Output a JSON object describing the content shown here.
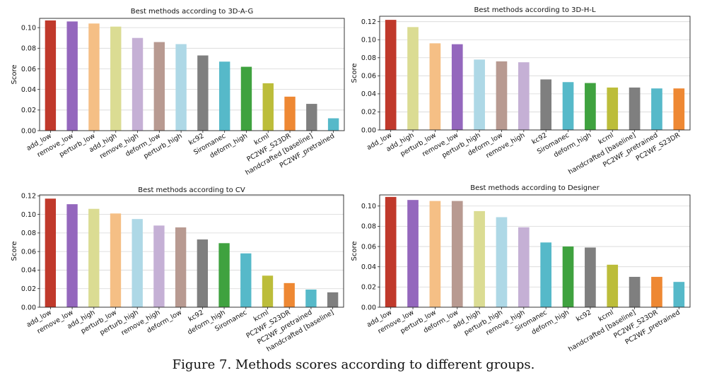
{
  "figure": {
    "caption": "Figure 7. Methods scores according to different groups."
  },
  "colors": {
    "add_low": "#c0392b",
    "remove_low": "#9467bd",
    "perturb_low": "#f5bf85",
    "add_high": "#dbdc93",
    "remove_high": "#c5b0d5",
    "deform_low": "#b89a91",
    "perturb_high": "#aed8e6",
    "kc92": "#7f7f7f",
    "Siromanec": "#56b9c9",
    "deform_high": "#3fa23f",
    "kcml": "#bcbd3a",
    "PC2WF_S23DR": "#ee8833",
    "handcrafted [baseline]": "#7f7f7f",
    "PC2WF_pretrained": "#56b9c9"
  },
  "chart_data": [
    {
      "type": "bar",
      "title": "Best methods according to 3D-A-G",
      "xlabel": "",
      "ylabel": "Score",
      "ylim": [
        0,
        0.109
      ],
      "yticks": [
        "0.00",
        "0.02",
        "0.04",
        "0.06",
        "0.08",
        "0.10"
      ],
      "grid": true,
      "categories": [
        "add_low",
        "remove_low",
        "perturb_low",
        "add_high",
        "remove_high",
        "deform_low",
        "perturb_high",
        "kc92",
        "Siromanec",
        "deform_high",
        "kcml",
        "PC2WF_S23DR",
        "handcrafted [baseline]",
        "PC2WF_pretrained"
      ],
      "values": [
        0.107,
        0.106,
        0.104,
        0.101,
        0.09,
        0.086,
        0.084,
        0.073,
        0.067,
        0.062,
        0.046,
        0.033,
        0.026,
        0.012
      ]
    },
    {
      "type": "bar",
      "title": "Best methods according to 3D-H-L",
      "xlabel": "",
      "ylabel": "Score",
      "ylim": [
        0,
        0.126
      ],
      "yticks": [
        "0.00",
        "0.02",
        "0.04",
        "0.06",
        "0.08",
        "0.10",
        "0.12"
      ],
      "grid": true,
      "categories": [
        "add_low",
        "add_high",
        "perturb_low",
        "remove_low",
        "perturb_high",
        "deform_low",
        "remove_high",
        "kc92",
        "Siromanec",
        "deform_high",
        "kcml",
        "handcrafted [baseline]",
        "PC2WF_pretrained",
        "PC2WF_S23DR"
      ],
      "values": [
        0.122,
        0.114,
        0.096,
        0.095,
        0.078,
        0.076,
        0.075,
        0.056,
        0.053,
        0.052,
        0.047,
        0.047,
        0.046,
        0.046
      ]
    },
    {
      "type": "bar",
      "title": "Best methods according to CV",
      "xlabel": "",
      "ylabel": "Score",
      "ylim": [
        0,
        0.121
      ],
      "yticks": [
        "0.00",
        "0.02",
        "0.04",
        "0.06",
        "0.08",
        "0.10",
        "0.12"
      ],
      "grid": true,
      "categories": [
        "add_low",
        "remove_low",
        "add_high",
        "perturb_low",
        "perturb_high",
        "remove_high",
        "deform_low",
        "kc92",
        "deform_high",
        "Siromanec",
        "kcml",
        "PC2WF_S23DR",
        "PC2WF_pretrained",
        "handcrafted [baseline]"
      ],
      "values": [
        0.117,
        0.111,
        0.106,
        0.101,
        0.095,
        0.088,
        0.086,
        0.073,
        0.069,
        0.058,
        0.034,
        0.026,
        0.019,
        0.016
      ]
    },
    {
      "type": "bar",
      "title": "Best methods according to Designer",
      "xlabel": "",
      "ylabel": "Score",
      "ylim": [
        0,
        0.111
      ],
      "yticks": [
        "0.00",
        "0.02",
        "0.04",
        "0.06",
        "0.08",
        "0.10"
      ],
      "grid": true,
      "categories": [
        "add_low",
        "remove_low",
        "perturb_low",
        "deform_low",
        "add_high",
        "perturb_high",
        "remove_high",
        "Siromanec",
        "deform_high",
        "kc92",
        "kcml",
        "handcrafted [baseline]",
        "PC2WF_S23DR",
        "PC2WF_pretrained"
      ],
      "values": [
        0.109,
        0.106,
        0.105,
        0.105,
        0.095,
        0.089,
        0.079,
        0.064,
        0.06,
        0.059,
        0.042,
        0.03,
        0.03,
        0.025
      ]
    }
  ]
}
